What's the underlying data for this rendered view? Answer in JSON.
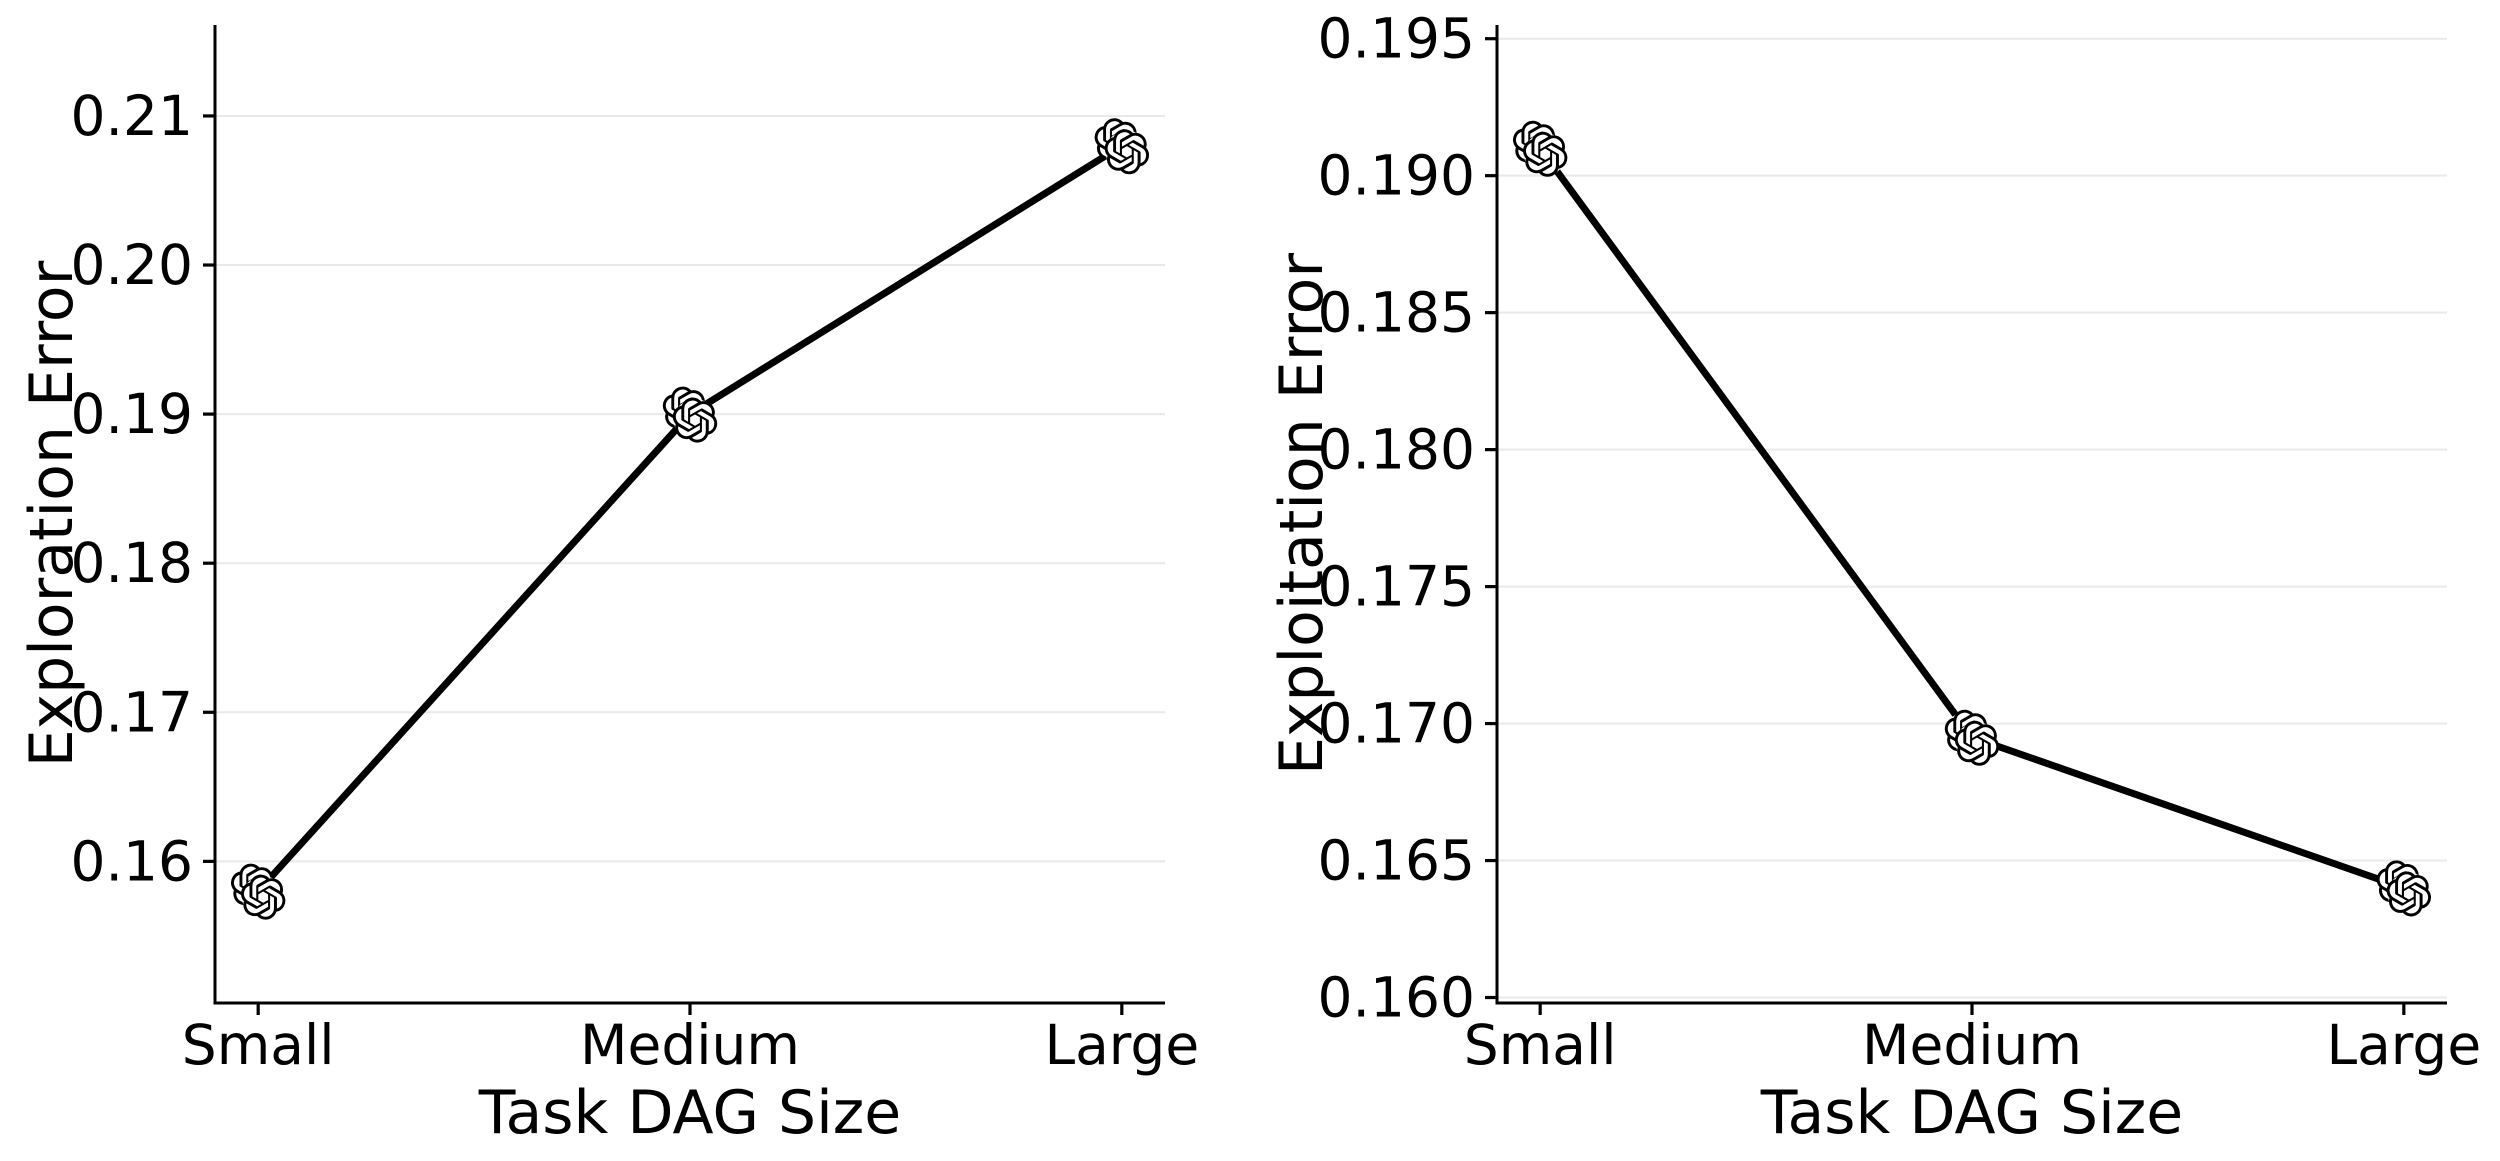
{
  "figure": {
    "background": "#ffffff",
    "text_color": "#000000",
    "grid_color": "#e9e9e9",
    "spine_color": "#000000",
    "marker_icon": "openai-logo-icon",
    "markers_per_point": 2
  },
  "chart_data": [
    {
      "type": "line",
      "panel": "left",
      "title": "",
      "xlabel": "Task DAG Size",
      "ylabel": "Exploration Error",
      "categories": [
        "Small",
        "Medium",
        "Large"
      ],
      "series": [
        {
          "name": "openai-model",
          "values": [
            0.158,
            0.19,
            0.208
          ]
        }
      ],
      "ylim": [
        0.1505,
        0.2161
      ],
      "ytick_values": [
        0.16,
        0.17,
        0.18,
        0.19,
        0.2,
        0.21
      ],
      "ytick_labels": [
        "0.16",
        "0.17",
        "0.18",
        "0.19",
        "0.20",
        "0.21"
      ],
      "grid": "horizontal",
      "legend": "none",
      "line_color": "#000000",
      "marker": "openai-logo"
    },
    {
      "type": "line",
      "panel": "right",
      "title": "",
      "xlabel": "Task DAG Size",
      "ylabel": "Exploitation Error",
      "categories": [
        "Small",
        "Medium",
        "Large"
      ],
      "series": [
        {
          "name": "openai-model",
          "values": [
            0.191,
            0.1695,
            0.164
          ]
        }
      ],
      "ylim": [
        0.1598,
        0.1955
      ],
      "ytick_values": [
        0.16,
        0.165,
        0.17,
        0.175,
        0.18,
        0.185,
        0.19,
        0.195
      ],
      "ytick_labels": [
        "0.160",
        "0.165",
        "0.170",
        "0.175",
        "0.180",
        "0.185",
        "0.190",
        "0.195"
      ],
      "grid": "horizontal",
      "legend": "none",
      "line_color": "#000000",
      "marker": "openai-logo"
    }
  ]
}
